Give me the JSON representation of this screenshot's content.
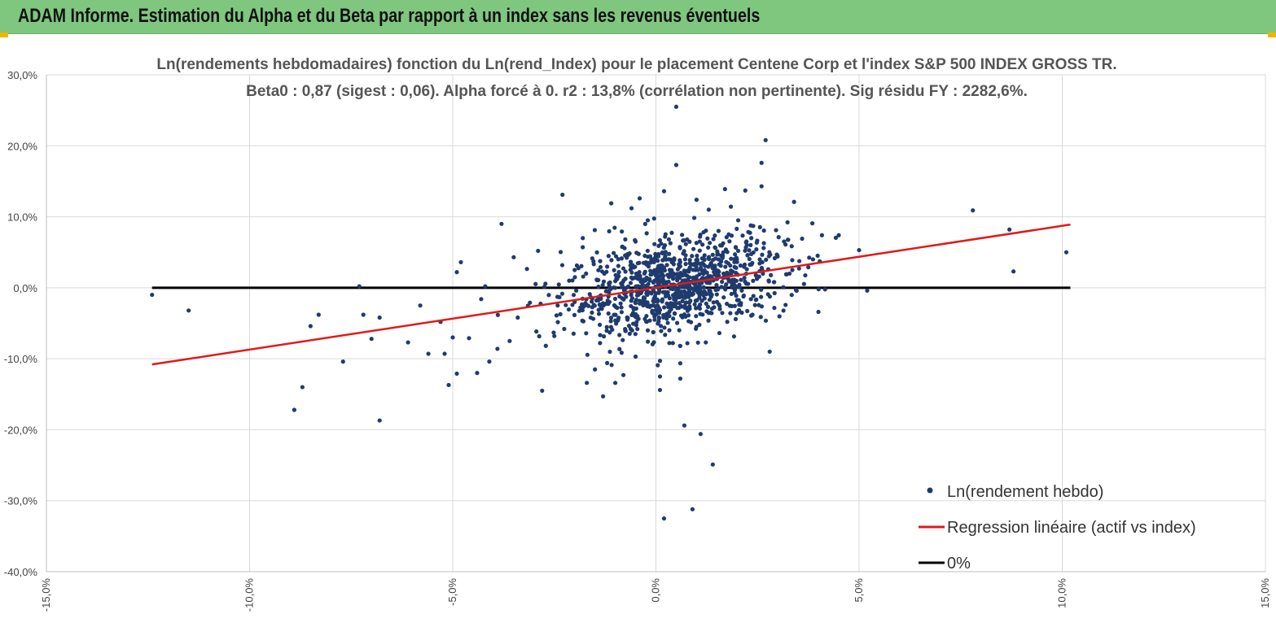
{
  "header": {
    "title": "ADAM Informe. Estimation du Alpha et du Beta par rapport à un index sans les revenus éventuels"
  },
  "colors": {
    "header_bg": "#7fc67f",
    "scatter": "#1f3b6e",
    "regression": "#e01a1a",
    "zero_line": "#000000",
    "grid": "#d9d9d9"
  },
  "chart_data": {
    "type": "scatter",
    "title_line1": "Ln(rendements hebdomadaires) fonction du Ln(rend_Index) pour le placement Centene Corp et l'index S&P 500 INDEX GROSS TR.",
    "title_line2": "Beta0 : 0,87 (sigest : 0,06). Alpha forcé à 0. r2 : 13,8% (corrélation non pertinente). Sig résidu FY : 2282,6%.",
    "xlim": [
      -15,
      15
    ],
    "ylim": [
      -40,
      30
    ],
    "x_ticks": [
      -15,
      -10,
      -5,
      0,
      5,
      10,
      15
    ],
    "y_ticks": [
      30,
      20,
      10,
      0,
      -10,
      -20,
      -30,
      -40
    ],
    "x_tick_labels": [
      "-15,0%",
      "-10,0%",
      "-5,0%",
      "0,0%",
      "5,0%",
      "10,0%",
      "15,0%"
    ],
    "y_tick_labels": [
      "30,0%",
      "20,0%",
      "10,0%",
      "0,0%",
      "-10,0%",
      "-20,0%",
      "-30,0%",
      "-40,0%"
    ],
    "grid": true,
    "legend_position": "bottom-right",
    "series": [
      {
        "name": "Ln(rendement hebdo)",
        "kind": "scatter",
        "points": [
          [
            -12.4,
            -1.0
          ],
          [
            -11.5,
            -3.2
          ],
          [
            -8.9,
            -17.2
          ],
          [
            -8.7,
            -14.0
          ],
          [
            -8.5,
            -5.4
          ],
          [
            -8.3,
            -3.8
          ],
          [
            -7.7,
            -10.4
          ],
          [
            -7.3,
            0.2
          ],
          [
            -7.2,
            -3.8
          ],
          [
            -7.0,
            -7.2
          ],
          [
            -6.8,
            -18.7
          ],
          [
            -6.8,
            -4.2
          ],
          [
            -6.1,
            -7.7
          ],
          [
            -5.8,
            -2.5
          ],
          [
            -5.6,
            -9.3
          ],
          [
            -5.3,
            -4.8
          ],
          [
            -5.2,
            -9.3
          ],
          [
            -5.1,
            -13.7
          ],
          [
            -5.0,
            -7.0
          ],
          [
            -4.9,
            2.2
          ],
          [
            -4.9,
            -12.1
          ],
          [
            -4.8,
            3.6
          ],
          [
            -4.6,
            -7.1
          ],
          [
            -4.4,
            -12.0
          ],
          [
            -4.3,
            -1.6
          ],
          [
            -4.2,
            0.2
          ],
          [
            -4.1,
            -10.4
          ],
          [
            -3.9,
            -8.6
          ],
          [
            -3.8,
            9.0
          ],
          [
            -3.6,
            -7.5
          ],
          [
            -3.5,
            4.3
          ],
          [
            -3.4,
            -4.2
          ],
          [
            -3.1,
            -2.1
          ],
          [
            -2.9,
            5.2
          ],
          [
            -2.8,
            -14.5
          ],
          [
            -2.5,
            -6.8
          ],
          [
            -2.3,
            13.1
          ],
          [
            -2.0,
            -2.0
          ],
          [
            -1.8,
            7.0
          ],
          [
            -1.7,
            -13.4
          ],
          [
            -1.5,
            -11.5
          ],
          [
            -1.3,
            -15.3
          ],
          [
            -1.2,
            -10.6
          ],
          [
            -1.1,
            11.9
          ],
          [
            -1.0,
            -13.4
          ],
          [
            -0.8,
            -12.3
          ],
          [
            -0.7,
            -4.5
          ],
          [
            -0.6,
            11.2
          ],
          [
            -0.5,
            -9.7
          ],
          [
            -0.4,
            12.6
          ],
          [
            -0.2,
            9.5
          ],
          [
            -0.2,
            -6.0
          ],
          [
            0.1,
            -10.3
          ],
          [
            0.1,
            -12.5
          ],
          [
            0.1,
            -14.4
          ],
          [
            0.2,
            -32.5
          ],
          [
            0.2,
            13.6
          ],
          [
            0.5,
            25.5
          ],
          [
            0.5,
            17.3
          ],
          [
            0.6,
            -8.2
          ],
          [
            0.6,
            -12.8
          ],
          [
            0.7,
            -19.4
          ],
          [
            0.9,
            -31.2
          ],
          [
            1.0,
            12.4
          ],
          [
            1.1,
            -20.6
          ],
          [
            1.3,
            11.0
          ],
          [
            1.4,
            -24.9
          ],
          [
            1.7,
            13.9
          ],
          [
            2.2,
            13.7
          ],
          [
            2.6,
            14.3
          ],
          [
            2.6,
            17.6
          ],
          [
            2.7,
            20.8
          ],
          [
            2.8,
            -9.0
          ],
          [
            3.4,
            12.1
          ],
          [
            4.0,
            -3.4
          ],
          [
            4.5,
            7.4
          ],
          [
            5.0,
            5.3
          ],
          [
            5.2,
            -0.4
          ],
          [
            7.8,
            10.9
          ],
          [
            8.7,
            8.2
          ],
          [
            8.8,
            2.3
          ],
          [
            10.1,
            5.0
          ]
        ]
      },
      {
        "name": "Regression linéaire (actif vs index)",
        "kind": "line",
        "x": [
          -12.4,
          10.2
        ],
        "y": [
          -10.8,
          8.9
        ]
      },
      {
        "name": "0%",
        "kind": "line",
        "x": [
          -12.4,
          10.2
        ],
        "y": [
          0,
          0
        ]
      }
    ]
  }
}
